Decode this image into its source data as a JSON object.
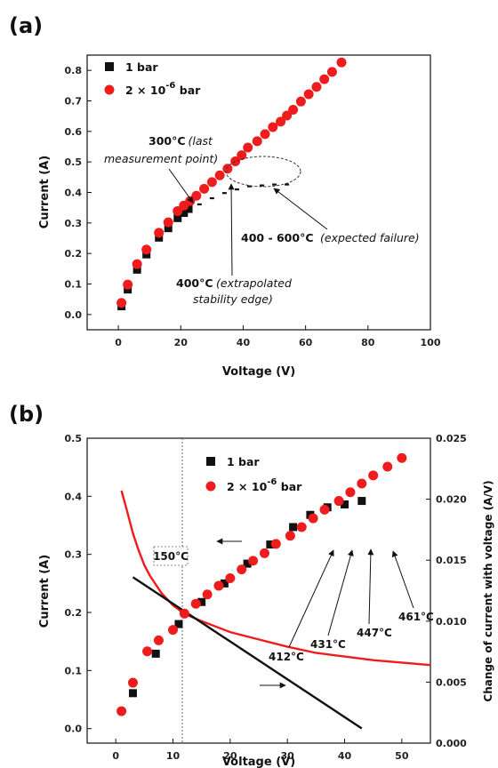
{
  "chart_data": [
    {
      "panel": "(a)",
      "type": "scatter",
      "xlabel": "Voltage (V)",
      "ylabel": "Current (A)",
      "xlim": [
        -10,
        100
      ],
      "ylim": [
        -0.05,
        0.85
      ],
      "xticks": [
        "0",
        "20",
        "40",
        "60",
        "80",
        "100"
      ],
      "yticks": [
        "0.0",
        "0.1",
        "0.2",
        "0.3",
        "0.4",
        "0.5",
        "0.6",
        "0.7",
        "0.8"
      ],
      "legend": {
        "s1": "1 bar",
        "s2_prefix": "2 × 10",
        "s2_sup": "-6",
        "s2_suffix": " bar"
      },
      "series": [
        {
          "name": "1 bar",
          "marker": "square",
          "color": "#111111",
          "x": [
            1,
            3,
            6,
            9,
            13,
            16,
            19,
            21,
            22.5
          ],
          "y": [
            0.027,
            0.082,
            0.147,
            0.197,
            0.252,
            0.283,
            0.316,
            0.333,
            0.346
          ]
        },
        {
          "name": "2 × 10^-6 bar",
          "marker": "circle",
          "color": "#ee1c1c",
          "x": [
            1,
            3,
            6,
            9,
            13,
            16,
            19,
            21,
            23,
            25,
            27.5,
            30,
            32.5,
            35,
            37.5,
            39.5,
            41.5,
            44.5,
            47,
            49.5,
            52,
            54,
            56,
            58.5,
            61,
            63.5,
            66,
            68.5,
            71.5
          ],
          "y": [
            0.038,
            0.098,
            0.165,
            0.213,
            0.268,
            0.302,
            0.339,
            0.357,
            0.372,
            0.389,
            0.412,
            0.434,
            0.456,
            0.478,
            0.502,
            0.522,
            0.547,
            0.568,
            0.591,
            0.614,
            0.632,
            0.652,
            0.671,
            0.698,
            0.722,
            0.746,
            0.771,
            0.795,
            0.826
          ]
        },
        {
          "name": "extrapolation",
          "marker": "dash",
          "color": "#111111",
          "x": [
            26,
            30,
            34,
            38,
            42,
            46,
            50,
            54
          ],
          "y": [
            0.361,
            0.381,
            0.398,
            0.41,
            0.42,
            0.423,
            0.426,
            0.426
          ]
        }
      ],
      "annotations": {
        "t300": "300°C",
        "t300_note_1": "(last",
        "t300_note_2": "measurement point)",
        "t400": "400°C",
        "t400_note_1": "(extrapolated",
        "t400_note_2": "stability edge)",
        "t400_600": "400 - 600°C",
        "t400_600_note": "(expected failure)"
      }
    },
    {
      "panel": "(b)",
      "type": "scatter",
      "xlabel": "Voltage (V)",
      "ylabel": "Current (A)",
      "y2label": "Change of current with voltage (A/V)",
      "xlim": [
        -5,
        55
      ],
      "ylim": [
        -0.025,
        0.5
      ],
      "y2lim": [
        0,
        0.025
      ],
      "xticks": [
        "0",
        "10",
        "20",
        "30",
        "40",
        "50"
      ],
      "yticks": [
        "0.0",
        "0.1",
        "0.2",
        "0.3",
        "0.4",
        "0.5"
      ],
      "y2ticks": [
        "0.000",
        "0.005",
        "0.010",
        "0.015",
        "0.020",
        "0.025"
      ],
      "legend": {
        "s1": "1 bar",
        "s2_prefix": "2 × 10",
        "s2_sup": "-6",
        "s2_suffix": " bar"
      },
      "series": [
        {
          "name": "1 bar",
          "marker": "square",
          "color": "#111111",
          "x": [
            3,
            7,
            11,
            15,
            19,
            23,
            27,
            31,
            34,
            37,
            40,
            43
          ],
          "y": [
            0.061,
            0.129,
            0.18,
            0.218,
            0.25,
            0.284,
            0.317,
            0.347,
            0.368,
            0.381,
            0.386,
            0.392
          ]
        },
        {
          "name": "2 × 10^-6 bar",
          "marker": "circle",
          "color": "#ee1c1c",
          "x": [
            1,
            3,
            5.5,
            7.5,
            10,
            12,
            14,
            16,
            18,
            20,
            22,
            24,
            26,
            28,
            30.5,
            32.5,
            34.5,
            36.5,
            39,
            41,
            43,
            45,
            47.5,
            50
          ],
          "y": [
            0.03,
            0.079,
            0.133,
            0.152,
            0.17,
            0.198,
            0.215,
            0.231,
            0.246,
            0.259,
            0.274,
            0.289,
            0.302,
            0.318,
            0.332,
            0.347,
            0.362,
            0.377,
            0.392,
            0.407,
            0.422,
            0.436,
            0.451,
            0.466
          ]
        },
        {
          "name": "dI/dV red",
          "marker": "line",
          "axis": "y2",
          "color": "#ee1c1c",
          "x": [
            1,
            2,
            3,
            4,
            5,
            6,
            8,
            10,
            12,
            15,
            20,
            25,
            30,
            35,
            40,
            45,
            50,
            55
          ],
          "y": [
            0.0207,
            0.019,
            0.0172,
            0.0158,
            0.0146,
            0.0137,
            0.0123,
            0.0113,
            0.0106,
            0.01,
            0.0091,
            0.0085,
            0.0079,
            0.0074,
            0.0071,
            0.0068,
            0.0066,
            0.0064
          ]
        },
        {
          "name": "dI/dV black",
          "marker": "line",
          "axis": "y2",
          "color": "#111111",
          "x": [
            3,
            43
          ],
          "y": [
            0.0136,
            0.0012
          ]
        }
      ],
      "temp_labels": [
        "412°C",
        "431°C",
        "447°C",
        "461°C"
      ],
      "marker_line_label": "150°C"
    }
  ]
}
